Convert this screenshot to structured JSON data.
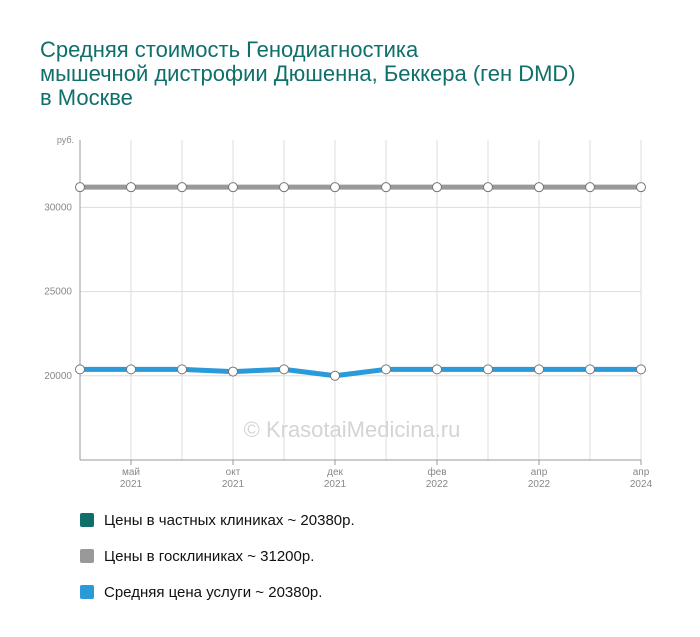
{
  "title_lines": [
    "Средняя стоимость Генодиагностика",
    "мышечной дистрофии Дюшенна, Беккера (ген DMD)",
    "в Москве"
  ],
  "watermark": "© KrasotaiMedicina.ru",
  "legend": [
    {
      "label": "Цены в частных клиниках ~ 20380р.",
      "color": "#0f6f6a"
    },
    {
      "label": "Цены в госклиниках ~ 31200р.",
      "color": "#999999"
    },
    {
      "label": "Средняя цена услуги ~ 20380р.",
      "color": "#2a9ad8"
    }
  ],
  "chart_data": {
    "type": "line",
    "title": "Средняя стоимость Генодиагностика мышечной дистрофии Дюшенна, Беккера (ген DMD) в Москве",
    "y_unit": "руб.",
    "ylim": [
      15000,
      34000
    ],
    "y_ticks": [
      20000,
      25000,
      30000
    ],
    "grid": true,
    "legend_position": "bottom",
    "x_tick_labels": [
      [
        "май",
        "2021"
      ],
      [
        "окт",
        "2021"
      ],
      [
        "дек",
        "2021"
      ],
      [
        "фев",
        "2022"
      ],
      [
        "апр",
        "2022"
      ],
      [
        "апр",
        "2024"
      ]
    ],
    "series": [
      {
        "name": "Цены в госклиниках ~ 31200р.",
        "color": "#999999",
        "values": [
          31200,
          31200,
          31200,
          31200,
          31200,
          31200,
          31200,
          31200,
          31200,
          31200,
          31200,
          31200
        ]
      },
      {
        "name": "Средняя цена услуги ~ 20380р.",
        "color": "#2a9ad8",
        "values": [
          20380,
          20380,
          20380,
          20250,
          20380,
          20000,
          20380,
          20380,
          20380,
          20380,
          20380,
          20380
        ]
      }
    ]
  }
}
